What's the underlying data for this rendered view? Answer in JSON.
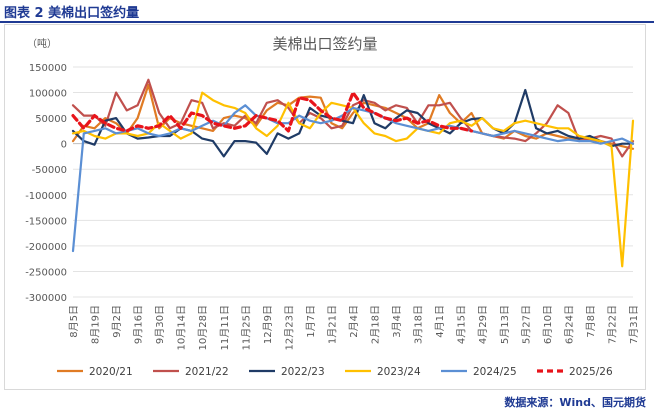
{
  "figure": {
    "caption": "图表 2  美棉出口签约量"
  },
  "source": "数据来源：Wind、国元期货",
  "chart_data": {
    "type": "line",
    "title": "美棉出口签约量",
    "unit": "（吨）",
    "ylim": [
      -300000,
      150000
    ],
    "yticks": [
      150000,
      100000,
      50000,
      0,
      -50000,
      -100000,
      -150000,
      -200000,
      -250000,
      -300000
    ],
    "ytick_labels": [
      "150000",
      "100000",
      "50000",
      "0",
      "-50000",
      "-100000",
      "-150000",
      "-200000",
      "-250000",
      "-300000"
    ],
    "xtick_labels": [
      "8月5日",
      "8月19日",
      "9月2日",
      "9月16日",
      "9月30日",
      "10月14日",
      "10月28日",
      "11月11日",
      "11月25日",
      "12月9日",
      "12月23日",
      "1月7日",
      "1月21日",
      "2月4日",
      "2月18日",
      "3月4日",
      "3月18日",
      "4月1日",
      "4月15日",
      "4月29日",
      "5月13日",
      "5月27日",
      "6月10日",
      "6月24日",
      "7月8日",
      "7月22日",
      "7月31日"
    ],
    "n_weeks": 53,
    "legend_position": "bottom",
    "grid": "horizontal",
    "series": [
      {
        "name": "2020/21",
        "color": "#e07b24",
        "width": 2.2,
        "dash": "",
        "values": [
          5000,
          35000,
          30000,
          50000,
          40000,
          20000,
          50000,
          115000,
          30000,
          50000,
          40000,
          35000,
          30000,
          25000,
          50000,
          55000,
          50000,
          35000,
          65000,
          80000,
          75000,
          90000,
          92000,
          90000,
          40000,
          30000,
          60000,
          80000,
          75000,
          70000,
          60000,
          50000,
          30000,
          40000,
          95000,
          60000,
          40000,
          60000,
          20000,
          15000,
          10000,
          25000,
          15000,
          10000,
          20000,
          15000,
          10000,
          10000,
          8000,
          5000,
          0,
          -5000,
          -10000
        ]
      },
      {
        "name": "2021/22",
        "color": "#c0504d",
        "width": 2.2,
        "dash": "",
        "values": [
          75000,
          55000,
          55000,
          35000,
          100000,
          65000,
          75000,
          125000,
          60000,
          30000,
          40000,
          85000,
          80000,
          30000,
          40000,
          35000,
          55000,
          40000,
          80000,
          85000,
          70000,
          40000,
          60000,
          50000,
          30000,
          35000,
          75000,
          85000,
          80000,
          65000,
          75000,
          70000,
          40000,
          75000,
          75000,
          80000,
          50000,
          25000,
          20000,
          15000,
          12000,
          10000,
          5000,
          20000,
          40000,
          75000,
          60000,
          5000,
          10000,
          15000,
          10000,
          -25000,
          5000
        ]
      },
      {
        "name": "2022/23",
        "color": "#1f3b66",
        "width": 2.2,
        "dash": "",
        "values": [
          25000,
          5000,
          -2000,
          45000,
          50000,
          20000,
          10000,
          12000,
          15000,
          15000,
          30000,
          25000,
          10000,
          5000,
          -25000,
          5000,
          5000,
          2000,
          -20000,
          20000,
          10000,
          20000,
          70000,
          55000,
          50000,
          45000,
          40000,
          95000,
          40000,
          30000,
          50000,
          65000,
          60000,
          40000,
          30000,
          20000,
          40000,
          48000,
          50000,
          30000,
          20000,
          40000,
          105000,
          30000,
          20000,
          25000,
          15000,
          10000,
          15000,
          5000,
          -5000,
          0,
          0
        ]
      },
      {
        "name": "2023/24",
        "color": "#ffc000",
        "width": 2.2,
        "dash": "",
        "values": [
          20000,
          25000,
          15000,
          10000,
          20000,
          20000,
          15000,
          20000,
          40000,
          25000,
          10000,
          20000,
          100000,
          85000,
          75000,
          70000,
          60000,
          30000,
          15000,
          35000,
          80000,
          40000,
          30000,
          60000,
          80000,
          75000,
          70000,
          40000,
          20000,
          15000,
          5000,
          10000,
          30000,
          25000,
          20000,
          40000,
          45000,
          35000,
          50000,
          30000,
          25000,
          40000,
          45000,
          40000,
          35000,
          30000,
          30000,
          15000,
          10000,
          5000,
          -5000,
          -240000,
          45000
        ]
      },
      {
        "name": "2024/25",
        "color": "#5b8fd4",
        "width": 2.2,
        "dash": "",
        "values": [
          -210000,
          20000,
          25000,
          30000,
          20000,
          25000,
          30000,
          20000,
          15000,
          20000,
          30000,
          25000,
          35000,
          45000,
          35000,
          60000,
          75000,
          55000,
          50000,
          40000,
          40000,
          55000,
          45000,
          40000,
          45000,
          55000,
          70000,
          65000,
          60000,
          50000,
          40000,
          35000,
          30000,
          25000,
          30000,
          35000,
          30000,
          25000,
          20000,
          15000,
          20000,
          25000,
          20000,
          15000,
          10000,
          5000,
          8000,
          5000,
          5000,
          0,
          5000,
          10000,
          0
        ]
      },
      {
        "name": "2025/26",
        "color": "#e8141b",
        "width": 3.2,
        "dash": "6,4",
        "values": [
          55000,
          30000,
          55000,
          40000,
          30000,
          25000,
          35000,
          30000,
          35000,
          55000,
          30000,
          60000,
          55000,
          40000,
          35000,
          30000,
          35000,
          55000,
          50000,
          45000,
          25000,
          90000,
          85000,
          65000,
          50000,
          45000,
          100000,
          70000,
          60000,
          50000,
          45000,
          50000,
          40000,
          45000,
          35000,
          30000,
          30000,
          25000
        ]
      }
    ]
  }
}
